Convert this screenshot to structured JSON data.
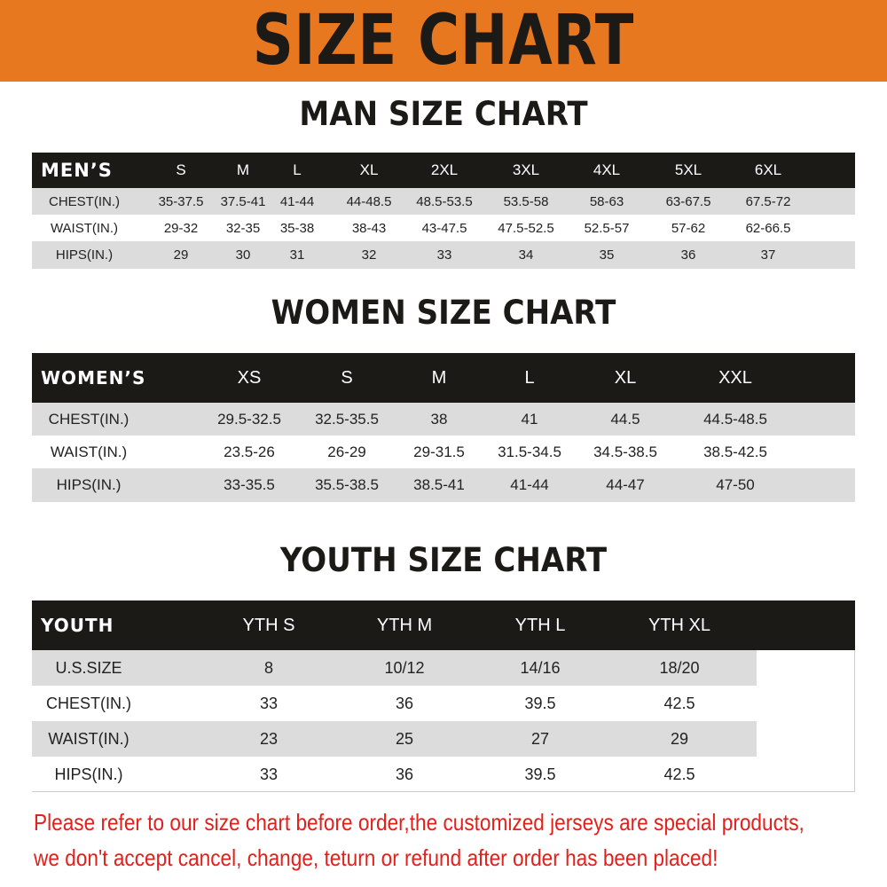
{
  "title": "SIZE CHART",
  "men": {
    "title": "MAN SIZE CHART",
    "header": [
      "MEN’S",
      "S",
      "M",
      "L",
      "XL",
      "2XL",
      "3XL",
      "4XL",
      "5XL",
      "6XL"
    ],
    "rows": [
      [
        "CHEST(IN.)",
        "35-37.5",
        "37.5-41",
        "41-44",
        "44-48.5",
        "48.5-53.5",
        "53.5-58",
        "58-63",
        "63-67.5",
        "67.5-72"
      ],
      [
        "WAIST(IN.)",
        "29-32",
        "32-35",
        "35-38",
        "38-43",
        "43-47.5",
        "47.5-52.5",
        "52.5-57",
        "57-62",
        "62-66.5"
      ],
      [
        "HIPS(IN.)",
        "29",
        "30",
        "31",
        "32",
        "33",
        "34",
        "35",
        "36",
        "37"
      ]
    ]
  },
  "women": {
    "title": "WOMEN SIZE CHART",
    "header": [
      "WOMEN’S",
      "XS",
      "S",
      "M",
      "L",
      "XL",
      "XXL"
    ],
    "rows": [
      [
        "CHEST(IN.)",
        "29.5-32.5",
        "32.5-35.5",
        "38",
        "41",
        "44.5",
        "44.5-48.5"
      ],
      [
        "WAIST(IN.)",
        "23.5-26",
        "26-29",
        "29-31.5",
        "31.5-34.5",
        "34.5-38.5",
        "38.5-42.5"
      ],
      [
        "HIPS(IN.)",
        "33-35.5",
        "35.5-38.5",
        "38.5-41",
        "41-44",
        "44-47",
        "47-50"
      ]
    ]
  },
  "youth": {
    "title": "YOUTH SIZE CHART",
    "header": [
      "YOUTH",
      "YTH S",
      "YTH M",
      "YTH L",
      "YTH XL"
    ],
    "rows": [
      [
        "U.S.SIZE",
        "8",
        "10/12",
        "14/16",
        "18/20"
      ],
      [
        "CHEST(IN.)",
        "33",
        "36",
        "39.5",
        "42.5"
      ],
      [
        "WAIST(IN.)",
        "23",
        "25",
        "27",
        "29"
      ],
      [
        "HIPS(IN.)",
        "33",
        "36",
        "39.5",
        "42.5"
      ]
    ]
  },
  "notice": [
    "Please refer to our size chart before order,the customized jerseys are special products,",
    "we don't accept cancel, change, teturn or refund after order has been placed!"
  ],
  "colors": {
    "banner": "#e8781f",
    "header_row": "#1c1a17",
    "stripe": "#dcdcdc",
    "notice": "#e3201b"
  }
}
